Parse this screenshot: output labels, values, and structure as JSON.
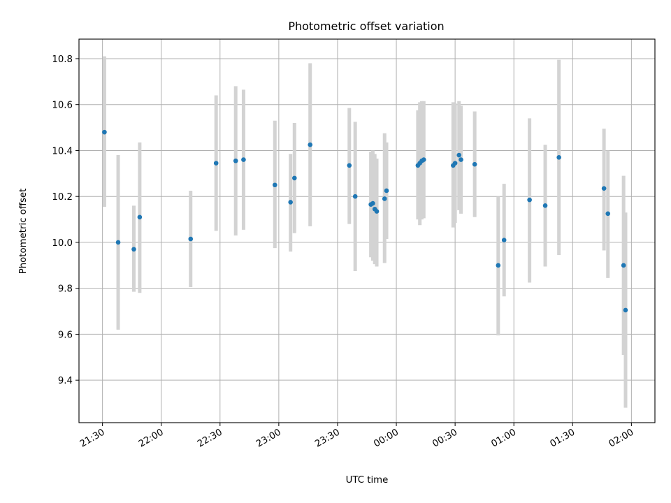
{
  "chart_data": {
    "type": "scatter",
    "title": "Photometric offset variation",
    "xlabel": "UTC time",
    "ylabel": "Photometric offset",
    "grid": true,
    "x_ticks": [
      "21:30",
      "22:00",
      "22:30",
      "23:00",
      "23:30",
      "00:00",
      "00:30",
      "01:00",
      "01:30",
      "02:00"
    ],
    "y_ticks": [
      "9.4",
      "9.6",
      "9.8",
      "10.0",
      "10.2",
      "10.4",
      "10.6",
      "10.8"
    ],
    "xlim_minutes_from_first_tick": [
      -12,
      282
    ],
    "ylim": [
      9.215,
      10.885
    ],
    "marker_color": "#1f77b4",
    "errorbar_color": "#d3d3d3",
    "points": [
      {
        "t": "21:31",
        "y": 10.48,
        "lo": 10.155,
        "hi": 10.81
      },
      {
        "t": "21:38",
        "y": 10.0,
        "lo": 9.62,
        "hi": 10.38
      },
      {
        "t": "21:46",
        "y": 9.97,
        "lo": 9.785,
        "hi": 10.16
      },
      {
        "t": "21:49",
        "y": 10.11,
        "lo": 9.78,
        "hi": 10.435
      },
      {
        "t": "22:15",
        "y": 10.015,
        "lo": 9.805,
        "hi": 10.225
      },
      {
        "t": "22:28",
        "y": 10.345,
        "lo": 10.05,
        "hi": 10.64
      },
      {
        "t": "22:38",
        "y": 10.355,
        "lo": 10.03,
        "hi": 10.68
      },
      {
        "t": "22:42",
        "y": 10.36,
        "lo": 10.055,
        "hi": 10.665
      },
      {
        "t": "22:58",
        "y": 10.25,
        "lo": 9.975,
        "hi": 10.53
      },
      {
        "t": "23:06",
        "y": 10.175,
        "lo": 9.96,
        "hi": 10.385
      },
      {
        "t": "23:08",
        "y": 10.28,
        "lo": 10.04,
        "hi": 10.52
      },
      {
        "t": "23:16",
        "y": 10.425,
        "lo": 10.07,
        "hi": 10.78
      },
      {
        "t": "23:36",
        "y": 10.335,
        "lo": 10.08,
        "hi": 10.585
      },
      {
        "t": "23:39",
        "y": 10.2,
        "lo": 9.875,
        "hi": 10.525
      },
      {
        "t": "23:47",
        "y": 10.165,
        "lo": 9.935,
        "hi": 10.395
      },
      {
        "t": "23:48",
        "y": 10.17,
        "lo": 9.92,
        "hi": 10.4
      },
      {
        "t": "23:49",
        "y": 10.145,
        "lo": 9.905,
        "hi": 10.385
      },
      {
        "t": "23:50",
        "y": 10.135,
        "lo": 9.895,
        "hi": 10.365
      },
      {
        "t": "23:54",
        "y": 10.19,
        "lo": 9.91,
        "hi": 10.475
      },
      {
        "t": "23:55",
        "y": 10.225,
        "lo": 10.015,
        "hi": 10.435
      },
      {
        "t": "00:11",
        "y": 10.335,
        "lo": 10.1,
        "hi": 10.575
      },
      {
        "t": "00:12",
        "y": 10.345,
        "lo": 10.075,
        "hi": 10.61
      },
      {
        "t": "00:13",
        "y": 10.355,
        "lo": 10.1,
        "hi": 10.615
      },
      {
        "t": "00:14",
        "y": 10.36,
        "lo": 10.105,
        "hi": 10.615
      },
      {
        "t": "00:29",
        "y": 10.335,
        "lo": 10.065,
        "hi": 10.61
      },
      {
        "t": "00:30",
        "y": 10.345,
        "lo": 10.085,
        "hi": 10.605
      },
      {
        "t": "00:32",
        "y": 10.38,
        "lo": 10.14,
        "hi": 10.615
      },
      {
        "t": "00:33",
        "y": 10.36,
        "lo": 10.125,
        "hi": 10.595
      },
      {
        "t": "00:40",
        "y": 10.34,
        "lo": 10.11,
        "hi": 10.57
      },
      {
        "t": "00:52",
        "y": 9.9,
        "lo": 9.595,
        "hi": 10.2
      },
      {
        "t": "00:55",
        "y": 10.01,
        "lo": 9.765,
        "hi": 10.255
      },
      {
        "t": "01:08",
        "y": 10.185,
        "lo": 9.825,
        "hi": 10.54
      },
      {
        "t": "01:16",
        "y": 10.16,
        "lo": 9.895,
        "hi": 10.425
      },
      {
        "t": "01:23",
        "y": 10.37,
        "lo": 9.945,
        "hi": 10.795
      },
      {
        "t": "01:46",
        "y": 10.235,
        "lo": 9.965,
        "hi": 10.495
      },
      {
        "t": "01:48",
        "y": 10.125,
        "lo": 9.845,
        "hi": 10.4
      },
      {
        "t": "01:56",
        "y": 9.9,
        "lo": 9.51,
        "hi": 10.29
      },
      {
        "t": "01:57",
        "y": 9.705,
        "lo": 9.28,
        "hi": 10.13
      }
    ]
  }
}
